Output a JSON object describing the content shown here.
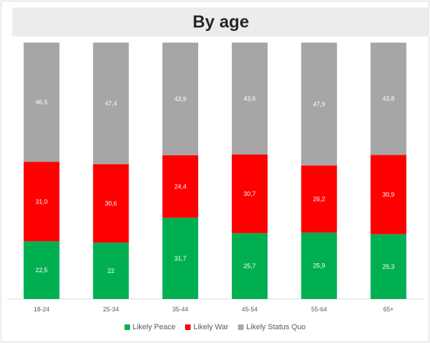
{
  "chart_data": {
    "type": "bar",
    "stacked": true,
    "title": "By age",
    "categories": [
      "18-24",
      "25-34",
      "35-44",
      "45-54",
      "55-64",
      "65+"
    ],
    "series": [
      {
        "name": "Likely Peace",
        "color": "#00b050",
        "values": [
          22.5,
          22,
          31.7,
          25.7,
          25.9,
          25.3
        ],
        "labels": [
          "22,5",
          "22",
          "31,7",
          "25,7",
          "25,9",
          "25,3"
        ]
      },
      {
        "name": "Likely War",
        "color": "#ff0000",
        "values": [
          31.0,
          30.6,
          24.4,
          30.7,
          26.2,
          30.9
        ],
        "labels": [
          "31,0",
          "30,6",
          "24,4",
          "30,7",
          "26,2",
          "30,9"
        ]
      },
      {
        "name": "Likely Status Quo",
        "color": "#a6a6a6",
        "values": [
          46.5,
          47.4,
          43.9,
          43.6,
          47.9,
          43.8
        ],
        "labels": [
          "46,5",
          "47,4",
          "43,9",
          "43,6",
          "47,9",
          "43,8"
        ]
      }
    ],
    "legend_position": "bottom",
    "grid": false
  }
}
